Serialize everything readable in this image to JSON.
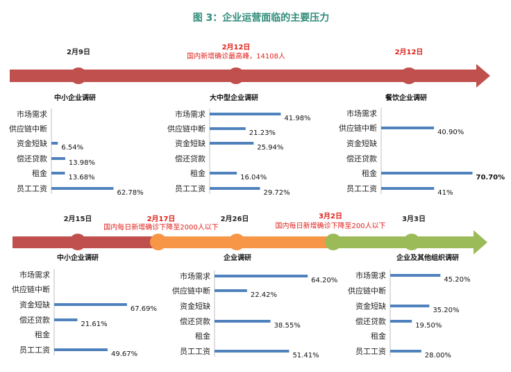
{
  "title": "图 3：企业运营面临的主要压力",
  "timeline1": {
    "dates": [
      "2月9日",
      "2月12日",
      "2月12日"
    ],
    "event": "国内新增确诊最高峰，14108人",
    "colors": {
      "arrow": "#c0504d",
      "dot": "#c0504d"
    }
  },
  "timeline2": {
    "dates": [
      "2月15日",
      "2月17日",
      "2月26日",
      "3月2日",
      "3月3日"
    ],
    "events": [
      "国内每日新增确诊下降至2000人以下",
      "国内每日新增确诊下降至200人以下"
    ],
    "colors": {
      "red": "#c0504d",
      "orange": "#f79646",
      "green": "#9bbb59"
    }
  },
  "bar_color": "#4f81bd",
  "chart_data": [
    {
      "type": "bar",
      "title": "中小企业调研",
      "categories": [
        "市场需求",
        "供应链中断",
        "资金短缺",
        "偿还贷款",
        "租金",
        "员工工资"
      ],
      "values": [
        null,
        null,
        6.54,
        13.98,
        13.68,
        62.78
      ],
      "labels": [
        "",
        "",
        "6.54%",
        "13.98%",
        "13.68%",
        "62.78%"
      ]
    },
    {
      "type": "bar",
      "title": "大中型企业调研",
      "categories": [
        "市场需求",
        "供应链中断",
        "资金短缺",
        "偿还贷款",
        "租金",
        "员工工资"
      ],
      "values": [
        41.98,
        21.23,
        25.94,
        null,
        16.04,
        29.72
      ],
      "labels": [
        "41.98%",
        "21.23%",
        "25.94%",
        "",
        "16.04%",
        "29.72%"
      ]
    },
    {
      "type": "bar",
      "title": "餐饮企业调研",
      "categories": [
        "市场需求",
        "供应链中断",
        "资金短缺",
        "偿还贷款",
        "租金",
        "员工工资"
      ],
      "values": [
        null,
        40.9,
        null,
        null,
        70.7,
        41
      ],
      "labels": [
        "",
        "40.90%",
        "",
        "",
        "70.70%",
        "41%"
      ]
    },
    {
      "type": "bar",
      "title": "中小企业调研",
      "categories": [
        "市场需求",
        "供应链中断",
        "资金短缺",
        "偿还贷款",
        "租金",
        "员工工资"
      ],
      "values": [
        null,
        null,
        67.69,
        21.61,
        null,
        49.67
      ],
      "labels": [
        "",
        "",
        "67.69%",
        "21.61%",
        "",
        "49.67%"
      ]
    },
    {
      "type": "bar",
      "title": "企业调研",
      "categories": [
        "市场需求",
        "供应链中断",
        "资金短缺",
        "偿还贷款",
        "租金",
        "员工工资"
      ],
      "values": [
        64.2,
        22.42,
        null,
        38.55,
        null,
        51.41
      ],
      "labels": [
        "64.20%",
        "22.42%",
        "",
        "38.55%",
        "",
        "51.41%"
      ]
    },
    {
      "type": "bar",
      "title": "企业及其他组织调研",
      "categories": [
        "市场需求",
        "供应链中断",
        "资金短缺",
        "偿还贷款",
        "租金",
        "员工工资"
      ],
      "values": [
        45.2,
        null,
        35.2,
        19.5,
        null,
        28
      ],
      "labels": [
        "45.20%",
        "",
        "35.20%",
        "19.50%",
        "",
        "28.00%"
      ]
    }
  ]
}
